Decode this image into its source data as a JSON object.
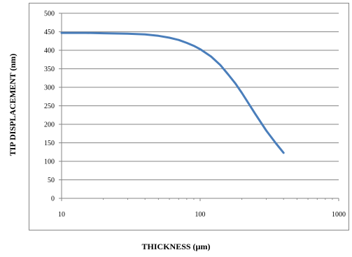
{
  "chart_data": {
    "type": "line",
    "title": "",
    "xlabel": "THICKNESS (µm)",
    "ylabel": "TIP DISPLACEMENT (nm)",
    "x_scale": "log",
    "xlim": [
      10,
      1000
    ],
    "ylim": [
      0,
      500
    ],
    "x_ticks": [
      "10",
      "100",
      "1000"
    ],
    "y_ticks": [
      "0",
      "50",
      "100",
      "150",
      "200",
      "250",
      "300",
      "350",
      "400",
      "450",
      "500"
    ],
    "grid": "horizontal",
    "legend": "none",
    "series": [
      {
        "color": "#4a7ebb",
        "x": [
          10,
          15,
          20,
          30,
          40,
          50,
          60,
          70,
          80,
          90,
          100,
          120,
          140,
          160,
          180,
          200,
          250,
          300,
          350,
          400
        ],
        "y": [
          447,
          447,
          446,
          445,
          443,
          439,
          434,
          428,
          420,
          412,
          403,
          383,
          360,
          334,
          310,
          285,
          228,
          183,
          150,
          123
        ]
      }
    ]
  }
}
